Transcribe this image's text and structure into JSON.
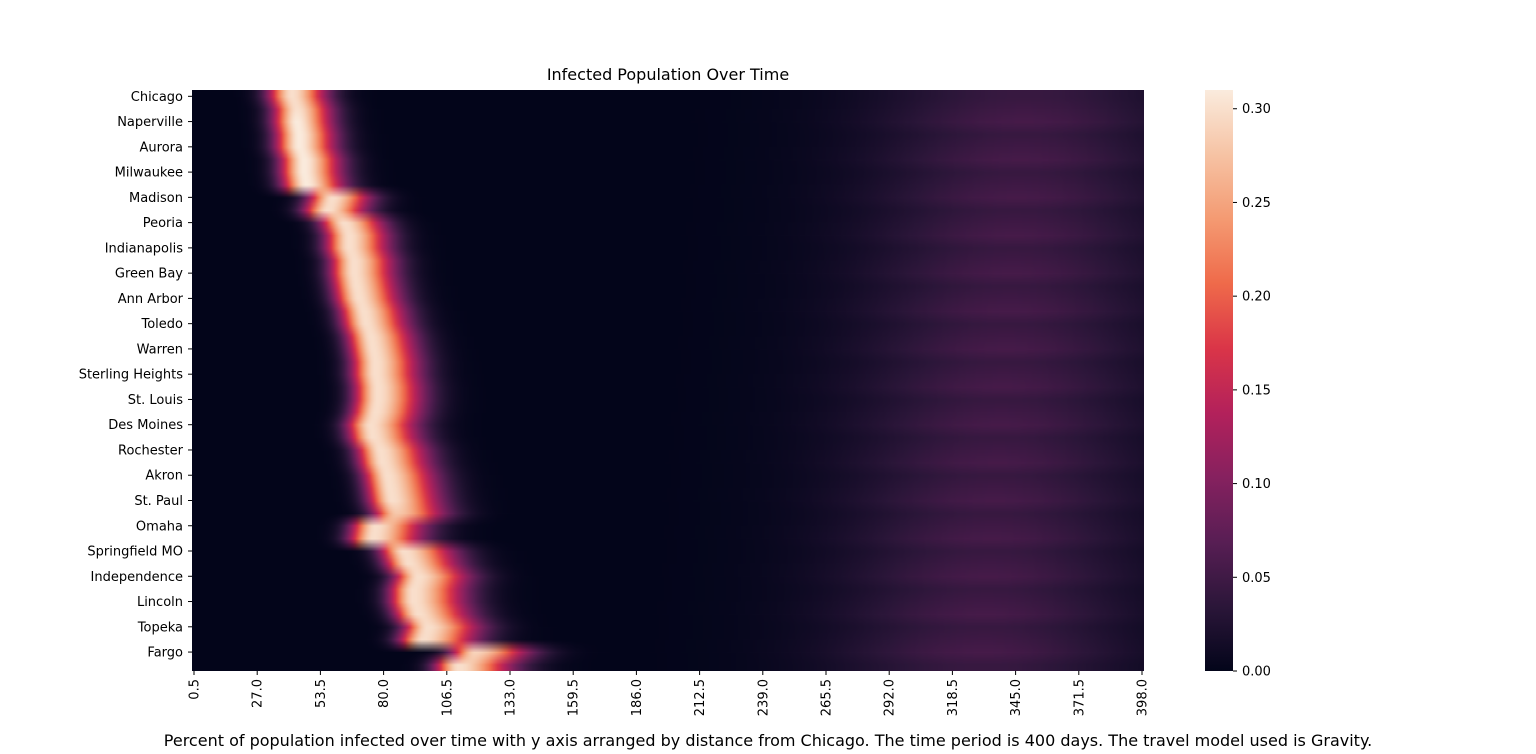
{
  "chart_data": {
    "type": "heatmap",
    "title": "Infected Population Over Time",
    "caption": "Percent of population infected over time with y axis arranged by distance from Chicago. The time period is 400 days. The travel model used is Gravity.",
    "y_labels": [
      "Chicago",
      "Naperville",
      "Aurora",
      "Milwaukee",
      "Madison",
      "Peoria",
      "Indianapolis",
      "Green Bay",
      "Ann Arbor",
      "Toledo",
      "Warren",
      "Sterling Heights",
      "St. Louis",
      "Des Moines",
      "Rochester",
      "Akron",
      "St. Paul",
      "Omaha",
      "Springfield MO",
      "Independence",
      "Lincoln",
      "Topeka",
      "Fargo"
    ],
    "x_tick_labels": [
      "0.5",
      "27.0",
      "53.5",
      "80.0",
      "106.5",
      "133.0",
      "159.5",
      "186.0",
      "212.5",
      "239.0",
      "265.5",
      "292.0",
      "318.5",
      "345.0",
      "371.5",
      "398.0"
    ],
    "x_range": [
      0.5,
      398.0
    ],
    "n_rows": 46,
    "row_peak_day": [
      42,
      44,
      44,
      45,
      45,
      47,
      47,
      48,
      59,
      57,
      64,
      66,
      66,
      68,
      68,
      69,
      70,
      72,
      73,
      75,
      76,
      77,
      77,
      78,
      78,
      77,
      75,
      76,
      79,
      80,
      82,
      83,
      84,
      86,
      77,
      76,
      89,
      91,
      95,
      93,
      93,
      95,
      99,
      97,
      119,
      112
    ],
    "row_peak_value": [
      0.3,
      0.3,
      0.31,
      0.31,
      0.31,
      0.31,
      0.31,
      0.31,
      0.3,
      0.3,
      0.3,
      0.3,
      0.3,
      0.3,
      0.3,
      0.3,
      0.3,
      0.3,
      0.3,
      0.3,
      0.3,
      0.3,
      0.3,
      0.3,
      0.3,
      0.3,
      0.3,
      0.3,
      0.3,
      0.3,
      0.3,
      0.3,
      0.3,
      0.28,
      0.3,
      0.3,
      0.3,
      0.3,
      0.3,
      0.3,
      0.3,
      0.3,
      0.3,
      0.3,
      0.29,
      0.3
    ],
    "colorbar": {
      "range": [
        0.0,
        0.31
      ],
      "ticks": [
        "0.00",
        "0.05",
        "0.10",
        "0.15",
        "0.20",
        "0.25",
        "0.30"
      ],
      "colormap": "rocket",
      "stops": [
        "#03051a",
        "#2b1639",
        "#581e54",
        "#86215f",
        "#b3215b",
        "#da3548",
        "#ef6a4a",
        "#f49a72",
        "#f6c3a4",
        "#faebdd"
      ]
    }
  }
}
